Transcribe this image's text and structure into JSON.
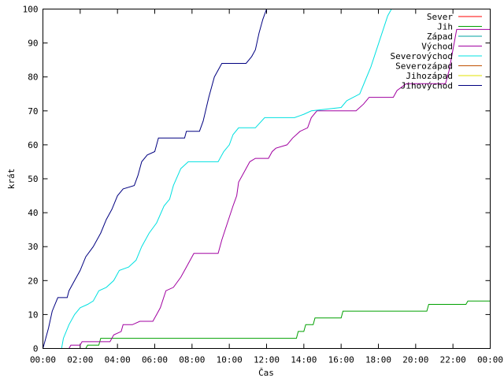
{
  "chart_data": {
    "type": "line",
    "xlabel": "Čas",
    "ylabel": "krát",
    "xlim": [
      0,
      24
    ],
    "ylim": [
      0,
      100
    ],
    "x_ticks": [
      0,
      2,
      4,
      6,
      8,
      10,
      12,
      14,
      16,
      18,
      20,
      22,
      24
    ],
    "x_tick_labels": [
      "00:00",
      "02:00",
      "04:00",
      "06:00",
      "08:00",
      "10:00",
      "12:00",
      "14:00",
      "16:00",
      "18:00",
      "20:00",
      "22:00",
      "00:00"
    ],
    "y_ticks": [
      0,
      10,
      20,
      30,
      40,
      50,
      60,
      70,
      80,
      90,
      100
    ],
    "grid": false,
    "legend_position": "top-right",
    "series": [
      {
        "name": "Sever",
        "color": "#ff0000",
        "points": []
      },
      {
        "name": "Jih",
        "color": "#00a000",
        "points": [
          [
            0,
            0
          ],
          [
            2.3,
            0
          ],
          [
            2.4,
            1
          ],
          [
            3.0,
            1
          ],
          [
            3.1,
            3
          ],
          [
            13.6,
            3
          ],
          [
            13.7,
            5
          ],
          [
            14.0,
            5
          ],
          [
            14.1,
            7
          ],
          [
            14.5,
            7
          ],
          [
            14.6,
            9
          ],
          [
            16.0,
            9
          ],
          [
            16.1,
            11
          ],
          [
            20.6,
            11
          ],
          [
            20.7,
            13
          ],
          [
            22.7,
            13
          ],
          [
            22.8,
            14
          ],
          [
            24,
            14
          ]
        ]
      },
      {
        "name": "Západ",
        "color": "#00a0a0",
        "points": []
      },
      {
        "name": "Východ",
        "color": "#a000a0",
        "points": [
          [
            0,
            0
          ],
          [
            1.4,
            0
          ],
          [
            1.5,
            1
          ],
          [
            2.0,
            1
          ],
          [
            2.1,
            2
          ],
          [
            3.6,
            2
          ],
          [
            3.8,
            4
          ],
          [
            4.2,
            5
          ],
          [
            4.3,
            7
          ],
          [
            4.8,
            7
          ],
          [
            5.2,
            8
          ],
          [
            5.9,
            8
          ],
          [
            6.1,
            10
          ],
          [
            6.3,
            12
          ],
          [
            6.6,
            17
          ],
          [
            7.0,
            18
          ],
          [
            7.4,
            21
          ],
          [
            7.7,
            24
          ],
          [
            8.1,
            28
          ],
          [
            9.4,
            28
          ],
          [
            9.6,
            32
          ],
          [
            9.9,
            37
          ],
          [
            10.2,
            42
          ],
          [
            10.4,
            45
          ],
          [
            10.5,
            49
          ],
          [
            10.8,
            52
          ],
          [
            11.1,
            55
          ],
          [
            11.4,
            56
          ],
          [
            12.1,
            56
          ],
          [
            12.3,
            58
          ],
          [
            12.5,
            59
          ],
          [
            13.1,
            60
          ],
          [
            13.4,
            62
          ],
          [
            13.8,
            64
          ],
          [
            14.2,
            65
          ],
          [
            14.4,
            68
          ],
          [
            14.7,
            70
          ],
          [
            16.8,
            70
          ],
          [
            17.2,
            72
          ],
          [
            17.5,
            74
          ],
          [
            18.8,
            74
          ],
          [
            19.0,
            76
          ],
          [
            19.5,
            78
          ],
          [
            21.6,
            78
          ],
          [
            21.8,
            82
          ],
          [
            22.2,
            94
          ],
          [
            24,
            94
          ]
        ]
      },
      {
        "name": "Severovýchod",
        "color": "#00e0e0",
        "points": [
          [
            0,
            0
          ],
          [
            1.0,
            0
          ],
          [
            1.1,
            3
          ],
          [
            1.4,
            7
          ],
          [
            1.7,
            10
          ],
          [
            2.0,
            12
          ],
          [
            2.4,
            13
          ],
          [
            2.7,
            14
          ],
          [
            3.0,
            17
          ],
          [
            3.4,
            18
          ],
          [
            3.8,
            20
          ],
          [
            4.1,
            23
          ],
          [
            4.6,
            24
          ],
          [
            5.0,
            26
          ],
          [
            5.3,
            30
          ],
          [
            5.7,
            34
          ],
          [
            6.1,
            37
          ],
          [
            6.5,
            42
          ],
          [
            6.8,
            44
          ],
          [
            7.0,
            48
          ],
          [
            7.4,
            53
          ],
          [
            7.8,
            55
          ],
          [
            9.4,
            55
          ],
          [
            9.7,
            58
          ],
          [
            10.0,
            60
          ],
          [
            10.2,
            63
          ],
          [
            10.5,
            65
          ],
          [
            11.4,
            65
          ],
          [
            11.9,
            68
          ],
          [
            13.5,
            68
          ],
          [
            14.0,
            69
          ],
          [
            14.4,
            70
          ],
          [
            16.0,
            71
          ],
          [
            16.3,
            73
          ],
          [
            17.0,
            75
          ],
          [
            17.3,
            79
          ],
          [
            17.6,
            83
          ],
          [
            17.9,
            88
          ],
          [
            18.2,
            93
          ],
          [
            18.5,
            98
          ],
          [
            18.7,
            100
          ]
        ]
      },
      {
        "name": "Severozápad",
        "color": "#c05000",
        "points": []
      },
      {
        "name": "Jihozápad",
        "color": "#e0e000",
        "points": []
      },
      {
        "name": "Jihovýchod",
        "color": "#000080",
        "points": [
          [
            0,
            0
          ],
          [
            0.1,
            2
          ],
          [
            0.3,
            6
          ],
          [
            0.5,
            11
          ],
          [
            0.8,
            15
          ],
          [
            1.3,
            15
          ],
          [
            1.4,
            17
          ],
          [
            1.7,
            20
          ],
          [
            2.0,
            23
          ],
          [
            2.3,
            27
          ],
          [
            2.7,
            30
          ],
          [
            3.1,
            34
          ],
          [
            3.4,
            38
          ],
          [
            3.7,
            41
          ],
          [
            4.0,
            45
          ],
          [
            4.3,
            47
          ],
          [
            4.9,
            48
          ],
          [
            5.1,
            51
          ],
          [
            5.3,
            55
          ],
          [
            5.6,
            57
          ],
          [
            6.0,
            58
          ],
          [
            6.2,
            62
          ],
          [
            7.6,
            62
          ],
          [
            7.7,
            64
          ],
          [
            8.4,
            64
          ],
          [
            8.6,
            67
          ],
          [
            8.9,
            74
          ],
          [
            9.2,
            80
          ],
          [
            9.6,
            84
          ],
          [
            10.9,
            84
          ],
          [
            11.2,
            86
          ],
          [
            11.4,
            88
          ],
          [
            11.6,
            93
          ],
          [
            11.8,
            97
          ],
          [
            12.0,
            100
          ]
        ]
      }
    ]
  }
}
